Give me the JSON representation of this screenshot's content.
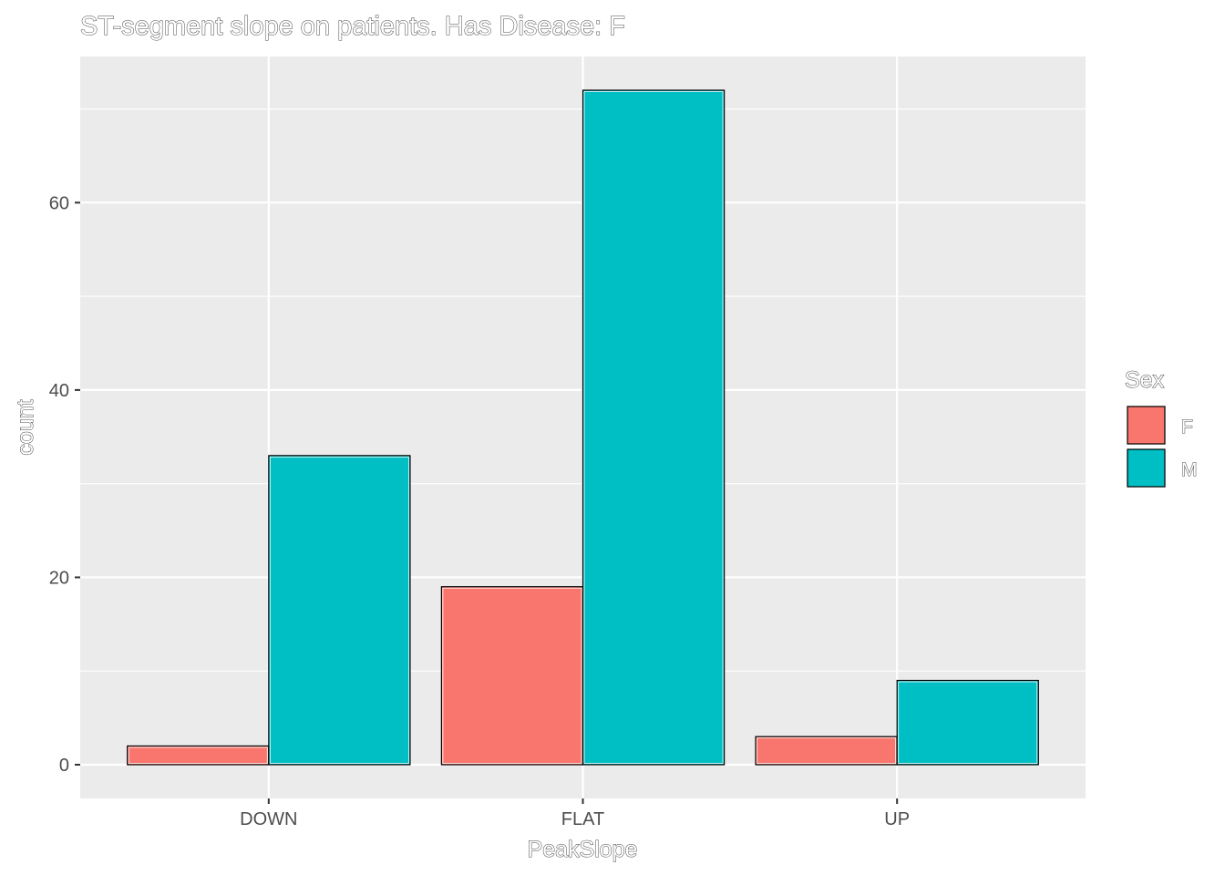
{
  "chart_data": {
    "type": "bar",
    "title": "ST-segment slope on patients. Has Disease: F",
    "xlabel": "PeakSlope",
    "ylabel": "count",
    "categories": [
      "DOWN",
      "FLAT",
      "UP"
    ],
    "series": [
      {
        "name": "F",
        "values": [
          2,
          19,
          3
        ],
        "color": "#F8766D"
      },
      {
        "name": "M",
        "values": [
          33,
          72,
          9
        ],
        "color": "#00BFC4"
      }
    ],
    "y_ticks": [
      0,
      20,
      40,
      60
    ],
    "y_tick_labels": [
      "0",
      "20",
      "40",
      "60"
    ],
    "ylim": [
      -3.6,
      75.6
    ],
    "grid": true,
    "legend": {
      "title": "Sex",
      "position": "right",
      "entries": [
        "F",
        "M"
      ]
    },
    "panel_color": "#EBEBEB",
    "grid_color": "#FFFFFF",
    "bar_outline_color": "#000000"
  }
}
